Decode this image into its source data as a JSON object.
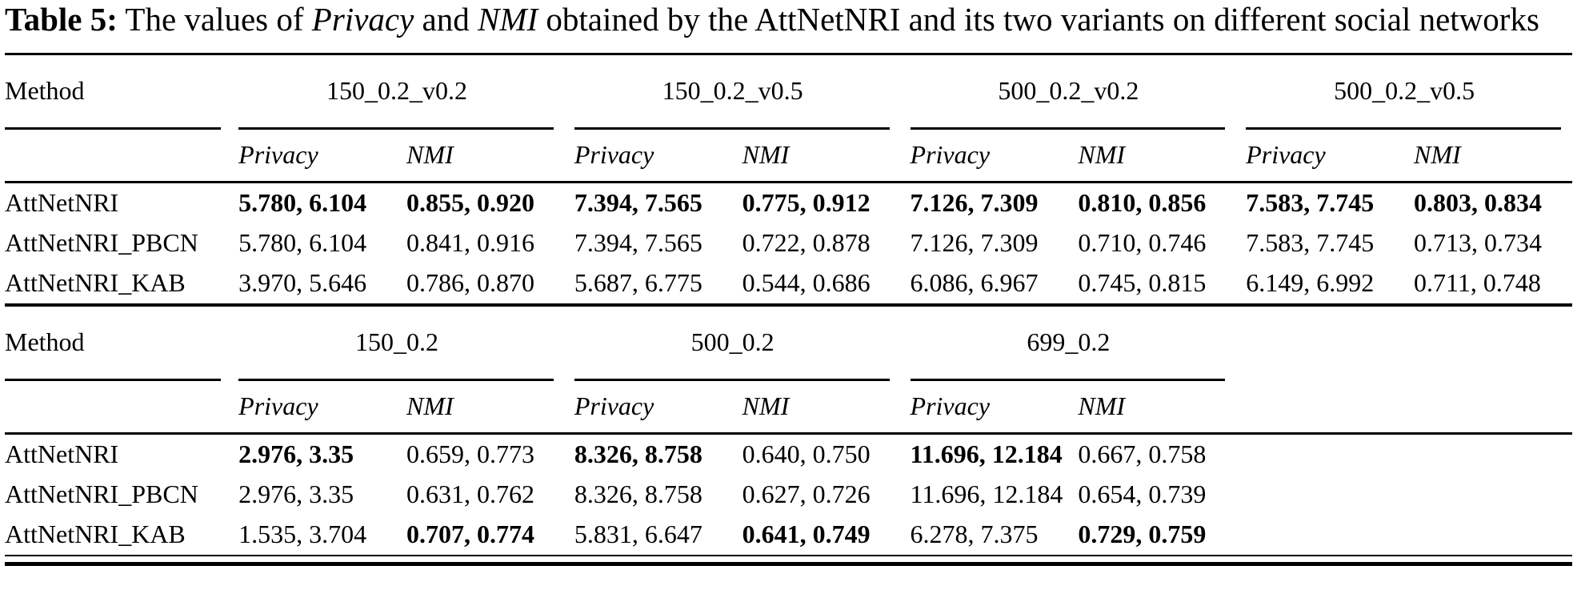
{
  "page": {
    "background": "#ffffff",
    "text_color": "#000000"
  },
  "caption": {
    "label": "Table 5:",
    "part1": " The values of ",
    "italic1": "Privacy",
    "part2": " and ",
    "italic2": "NMI",
    "part3": " obtained by the AttNetNRI and its two variants on different social networks"
  },
  "table": {
    "sections": [
      {
        "method_header": "Method",
        "groups": [
          "150_0.2_v0.2",
          "150_0.2_v0.5",
          "500_0.2_v0.2",
          "500_0.2_v0.5"
        ],
        "subheaders": [
          "Privacy",
          "NMI",
          "Privacy",
          "NMI",
          "Privacy",
          "NMI",
          "Privacy",
          "NMI"
        ],
        "rows": [
          {
            "method": "AttNetNRI",
            "cells": [
              "5.780, 6.104",
              "0.855, 0.920",
              "7.394, 7.565",
              "0.775, 0.912",
              "7.126, 7.309",
              "0.810, 0.856",
              "7.583, 7.745",
              "0.803, 0.834"
            ]
          },
          {
            "method": "AttNetNRI_PBCN",
            "cells": [
              "5.780, 6.104",
              "0.841, 0.916",
              "7.394, 7.565",
              "0.722, 0.878",
              "7.126, 7.309",
              "0.710, 0.746",
              "7.583, 7.745",
              "0.713, 0.734"
            ]
          },
          {
            "method": "AttNetNRI_KAB",
            "cells": [
              "3.970, 5.646",
              "0.786, 0.870",
              "5.687, 6.775",
              "0.544, 0.686",
              "6.086, 6.967",
              "0.745, 0.815",
              "6.149, 6.992",
              "0.711, 0.748"
            ]
          }
        ]
      },
      {
        "method_header": "Method",
        "groups": [
          "150_0.2",
          "500_0.2",
          "699_0.2"
        ],
        "subheaders": [
          "Privacy",
          "NMI",
          "Privacy",
          "NMI",
          "Privacy",
          "NMI"
        ],
        "rows": [
          {
            "method": "AttNetNRI",
            "cells": [
              "2.976, 3.35",
              "0.659, 0.773",
              "8.326, 8.758",
              "0.640, 0.750",
              "11.696, 12.184",
              "0.667, 0.758"
            ]
          },
          {
            "method": "AttNetNRI_PBCN",
            "cells": [
              "2.976, 3.35",
              "0.631, 0.762",
              "8.326, 8.758",
              "0.627, 0.726",
              "11.696, 12.184",
              "0.654, 0.739"
            ]
          },
          {
            "method": "AttNetNRI_KAB",
            "cells": [
              "1.535, 3.704",
              "0.707, 0.774",
              "5.831, 6.647",
              "0.641, 0.749",
              "6.278, 7.375",
              "0.729, 0.759"
            ]
          }
        ]
      }
    ]
  }
}
